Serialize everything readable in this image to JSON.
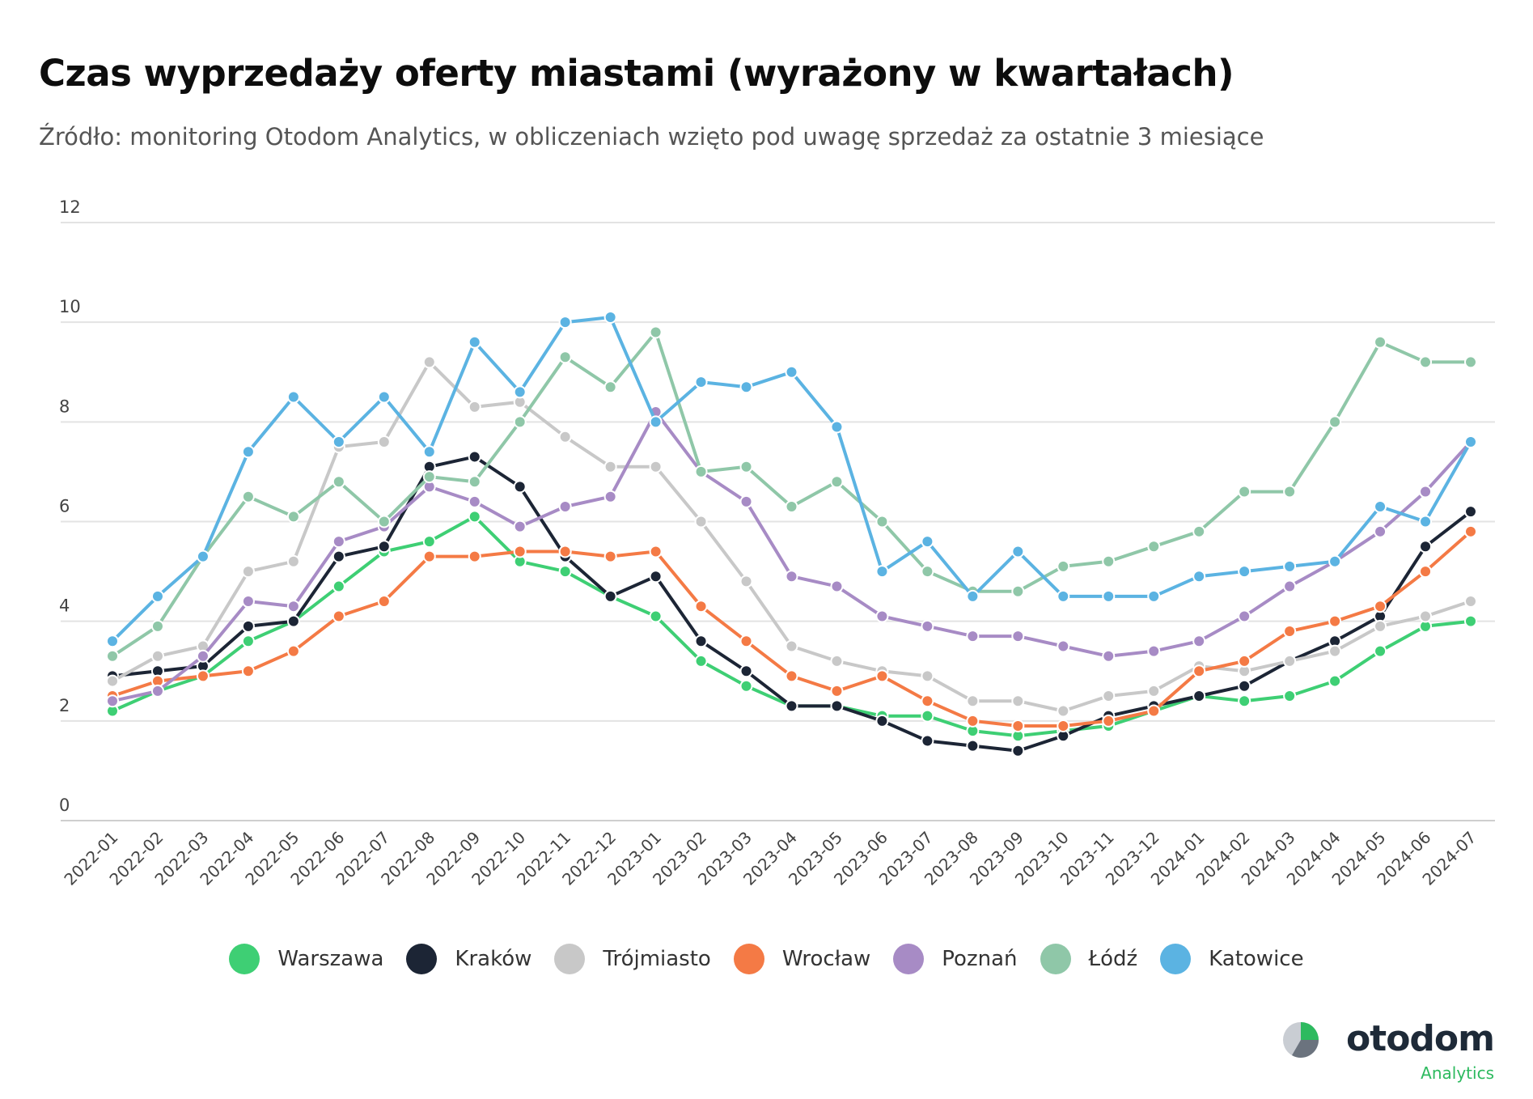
{
  "header": {
    "title": "Czas wyprzedaży oferty miastami (wyrażony w kwartałach)",
    "subtitle": "Źródło: monitoring Otodom Analytics, w obliczeniach wzięto pod uwagę sprzedaż za ostatnie 3 miesiące"
  },
  "logo": {
    "word": "otodom",
    "sub": "Analytics"
  },
  "chart_data": {
    "type": "line",
    "title": "Czas wyprzedaży oferty miastami (wyrażony w kwartałach)",
    "ylim": [
      0,
      12
    ],
    "yticks": [
      0,
      2,
      4,
      6,
      8,
      10,
      12
    ],
    "grid": true,
    "legend_position": "bottom",
    "x": [
      "2022-01",
      "2022-02",
      "2022-03",
      "2022-04",
      "2022-05",
      "2022-06",
      "2022-07",
      "2022-08",
      "2022-09",
      "2022-10",
      "2022-11",
      "2022-12",
      "2023-01",
      "2023-02",
      "2023-03",
      "2023-04",
      "2023-05",
      "2023-06",
      "2023-07",
      "2023-08",
      "2023-09",
      "2023-10",
      "2023-11",
      "2023-12",
      "2024-01",
      "2024-02",
      "2024-03",
      "2024-04",
      "2024-05",
      "2024-06",
      "2024-07"
    ],
    "series": [
      {
        "name": "Warszawa",
        "color": "#3ecf74",
        "values": [
          2.2,
          2.6,
          2.9,
          3.6,
          4.0,
          4.7,
          5.4,
          5.6,
          6.1,
          5.2,
          5.0,
          4.5,
          4.1,
          3.2,
          2.7,
          2.3,
          2.3,
          2.1,
          2.1,
          1.8,
          1.7,
          1.8,
          1.9,
          2.2,
          2.5,
          2.4,
          2.5,
          2.8,
          3.4,
          3.9,
          4.0
        ]
      },
      {
        "name": "Kraków",
        "color": "#1c2535",
        "values": [
          2.9,
          3.0,
          3.1,
          3.9,
          4.0,
          5.3,
          5.5,
          7.1,
          7.3,
          6.7,
          5.3,
          4.5,
          4.9,
          3.6,
          3.0,
          2.3,
          2.3,
          2.0,
          1.6,
          1.5,
          1.4,
          1.7,
          2.1,
          2.3,
          2.5,
          2.7,
          3.2,
          3.6,
          4.1,
          5.5,
          6.2
        ]
      },
      {
        "name": "Trójmiasto",
        "color": "#c8c8c8",
        "values": [
          2.8,
          3.3,
          3.5,
          5.0,
          5.2,
          7.5,
          7.6,
          9.2,
          8.3,
          8.4,
          7.7,
          7.1,
          7.1,
          6.0,
          4.8,
          3.5,
          3.2,
          3.0,
          2.9,
          2.4,
          2.4,
          2.2,
          2.5,
          2.6,
          3.1,
          3.0,
          3.2,
          3.4,
          3.9,
          4.1,
          4.4
        ]
      },
      {
        "name": "Wrocław",
        "color": "#f47a45",
        "values": [
          2.5,
          2.8,
          2.9,
          3.0,
          3.4,
          4.1,
          4.4,
          5.3,
          5.3,
          5.4,
          5.4,
          5.3,
          5.4,
          4.3,
          3.6,
          2.9,
          2.6,
          2.9,
          2.4,
          2.0,
          1.9,
          1.9,
          2.0,
          2.2,
          3.0,
          3.2,
          3.8,
          4.0,
          4.3,
          5.0,
          5.8
        ]
      },
      {
        "name": "Poznań",
        "color": "#a78bc5",
        "values": [
          2.4,
          2.6,
          3.3,
          4.4,
          4.3,
          5.6,
          5.9,
          6.7,
          6.4,
          5.9,
          6.3,
          6.5,
          8.2,
          7.0,
          6.4,
          4.9,
          4.7,
          4.1,
          3.9,
          3.7,
          3.7,
          3.5,
          3.3,
          3.4,
          3.6,
          4.1,
          4.7,
          5.2,
          5.8,
          6.6,
          7.6
        ]
      },
      {
        "name": "Łódź",
        "color": "#8fc7a8",
        "values": [
          3.3,
          3.9,
          5.3,
          6.5,
          6.1,
          6.8,
          6.0,
          6.9,
          6.8,
          8.0,
          9.3,
          8.7,
          9.8,
          7.0,
          7.1,
          6.3,
          6.8,
          6.0,
          5.0,
          4.6,
          4.6,
          5.1,
          5.2,
          5.5,
          5.8,
          6.6,
          6.6,
          8.0,
          9.6,
          9.2,
          9.2
        ]
      },
      {
        "name": "Katowice",
        "color": "#5bb3e2",
        "values": [
          3.6,
          4.5,
          5.3,
          7.4,
          8.5,
          7.6,
          8.5,
          7.4,
          9.6,
          8.6,
          10.0,
          10.1,
          8.0,
          8.8,
          8.7,
          9.0,
          7.9,
          5.0,
          5.6,
          4.5,
          5.4,
          4.5,
          4.5,
          4.5,
          4.9,
          5.0,
          5.1,
          5.2,
          6.3,
          6.0,
          7.6
        ]
      }
    ]
  }
}
